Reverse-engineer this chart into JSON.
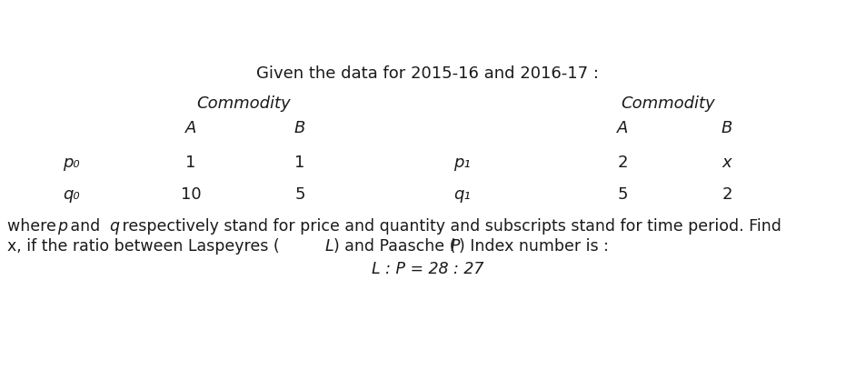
{
  "title": "Given the data for 2015-16 and 2016-17 :",
  "commodity_label": "Commodity",
  "col_A": "A",
  "col_B": "B",
  "row_p0": "p₀",
  "row_q0": "q₀",
  "row_p1": "p₁",
  "row_q1": "q₁",
  "p0_A": "1",
  "p0_B": "1",
  "q0_A": "10",
  "q0_B": "5",
  "p1_A": "2",
  "p1_B": "x",
  "q1_A": "5",
  "q1_B": "2",
  "bg_color": "#ffffff",
  "text_color": "#1a1a1a",
  "font_size_title": 13,
  "font_size_table": 13,
  "font_size_footer": 12.5
}
